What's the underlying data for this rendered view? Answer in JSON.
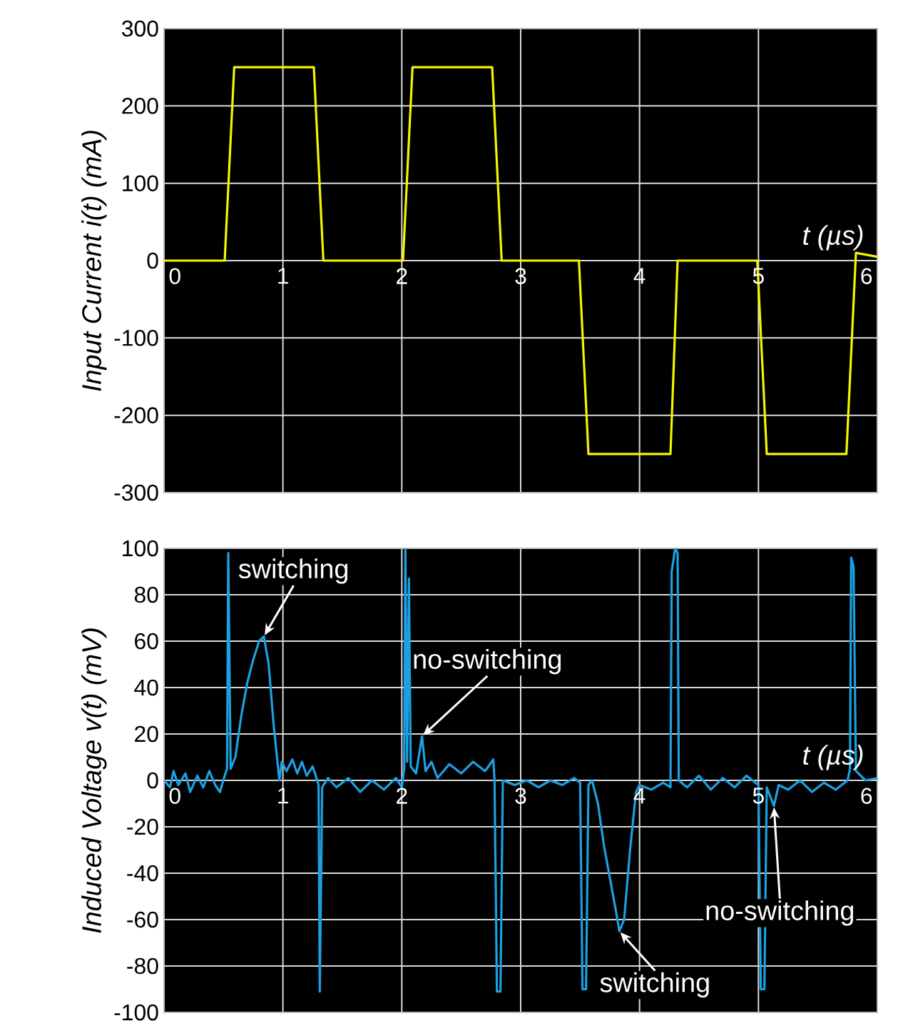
{
  "chart_data": [
    {
      "type": "line",
      "ylabel": "Input Current i(t) (mA)",
      "xlabel": "t (µs)",
      "xlim": [
        0,
        6
      ],
      "ylim": [
        -300,
        300
      ],
      "xticks": [
        0,
        1,
        2,
        3,
        4,
        5,
        6
      ],
      "yticks": [
        -300,
        -200,
        -100,
        0,
        100,
        200,
        300
      ],
      "grid": true,
      "series": [
        {
          "color": "#f5f500",
          "x": [
            0,
            0.51,
            0.59,
            1.26,
            1.34,
            2.01,
            2.09,
            2.76,
            2.84,
            3.49,
            3.57,
            4.26,
            4.32,
            4.99,
            5.07,
            5.74,
            5.82,
            6
          ],
          "values": [
            0,
            0,
            250,
            250,
            0,
            0,
            250,
            250,
            0,
            0,
            -250,
            -250,
            0,
            0,
            -250,
            -250,
            10,
            5
          ]
        }
      ]
    },
    {
      "type": "line",
      "ylabel": "Induced Voltage v(t) (mV)",
      "xlabel": "t (µs)",
      "xlim": [
        0,
        6
      ],
      "ylim": [
        -100,
        100
      ],
      "xticks": [
        0,
        1,
        2,
        3,
        4,
        5,
        6
      ],
      "yticks": [
        -100,
        -80,
        -60,
        -40,
        -20,
        0,
        20,
        40,
        60,
        80,
        100
      ],
      "grid": true,
      "annotations": [
        {
          "text": "switching",
          "x": 0.84,
          "y": 62
        },
        {
          "text": "no-switching",
          "x": 2.17,
          "y": 19
        },
        {
          "text": "switching",
          "x": 3.83,
          "y": -65
        },
        {
          "text": "no-switching",
          "x": 5.13,
          "y": -11
        }
      ],
      "series": [
        {
          "color": "#1ba1e2",
          "x": [
            0,
            0.05,
            0.08,
            0.12,
            0.18,
            0.22,
            0.28,
            0.33,
            0.38,
            0.43,
            0.47,
            0.51,
            0.53,
            0.54,
            0.56,
            0.6,
            0.65,
            0.7,
            0.75,
            0.8,
            0.84,
            0.88,
            0.92,
            0.96,
            0.97,
            0.99,
            1.03,
            1.08,
            1.12,
            1.16,
            1.2,
            1.25,
            1.27,
            1.3,
            1.31,
            1.33,
            1.38,
            1.45,
            1.55,
            1.65,
            1.75,
            1.85,
            1.95,
            2.0,
            2.02,
            2.03,
            2.045,
            2.06,
            2.075,
            2.12,
            2.17,
            2.2,
            2.25,
            2.3,
            2.4,
            2.5,
            2.6,
            2.7,
            2.77,
            2.78,
            2.8,
            2.83,
            2.85,
            2.95,
            3.05,
            3.15,
            3.25,
            3.35,
            3.45,
            3.5,
            3.52,
            3.55,
            3.57,
            3.6,
            3.65,
            3.7,
            3.75,
            3.8,
            3.83,
            3.87,
            3.92,
            3.97,
            4.0,
            4.1,
            4.2,
            4.26,
            4.27,
            4.3,
            4.32,
            4.33,
            4.4,
            4.5,
            4.6,
            4.7,
            4.8,
            4.9,
            5.0,
            5.02,
            5.05,
            5.07,
            5.13,
            5.17,
            5.25,
            5.35,
            5.45,
            5.55,
            5.65,
            5.75,
            5.77,
            5.78,
            5.8,
            5.82,
            5.9,
            6.0
          ],
          "values": [
            0,
            -3,
            4,
            -2,
            3,
            -5,
            2,
            -3,
            4,
            -2,
            -5,
            2,
            5,
            98,
            5,
            10,
            28,
            42,
            52,
            60,
            62,
            50,
            25,
            5,
            0,
            8,
            4,
            9,
            3,
            8,
            2,
            6,
            3,
            -2,
            -91,
            -3,
            1,
            -3,
            1,
            -5,
            0,
            -4,
            1,
            -3,
            5,
            100,
            8,
            87,
            6,
            3,
            19,
            4,
            8,
            1,
            7,
            3,
            8,
            4,
            9,
            0,
            -91,
            -91,
            0,
            -2,
            0,
            -3,
            0,
            -2,
            1,
            -1,
            -90,
            -90,
            -2,
            0,
            -10,
            -28,
            -42,
            -56,
            -65,
            -60,
            -30,
            -5,
            -2,
            -4,
            -1,
            -3,
            90,
            100,
            98,
            0,
            -3,
            2,
            -4,
            1,
            -3,
            2,
            -2,
            -90,
            -90,
            -3,
            -11,
            -2,
            -4,
            0,
            -5,
            -1,
            -4,
            0,
            5,
            96,
            92,
            4,
            0,
            1
          ]
        }
      ]
    }
  ]
}
